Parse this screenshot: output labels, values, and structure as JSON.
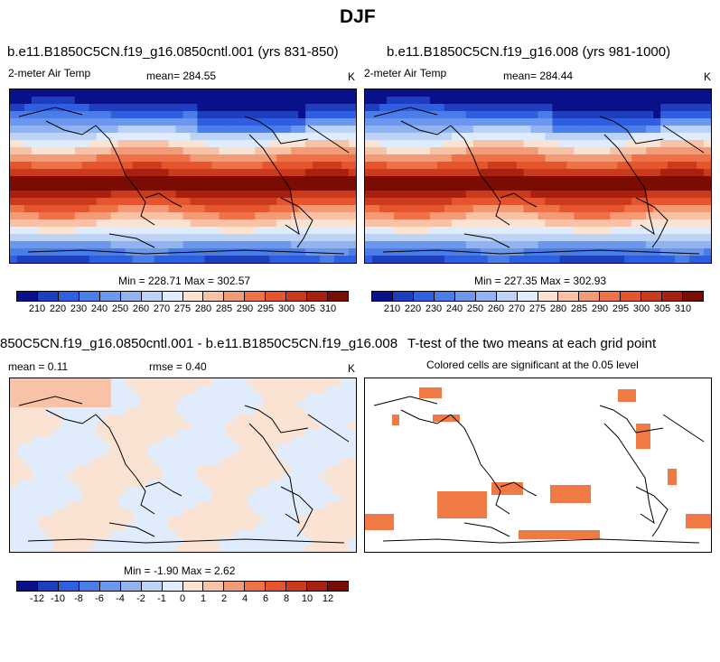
{
  "page": {
    "title": "DJF"
  },
  "panels": [
    {
      "title": "b.e11.B1850C5CN.f19_g16.0850cntl.001 (yrs 831-850)",
      "variable": "2-meter Air Temp",
      "stat": "mean= 284.55",
      "units": "K",
      "minmax": "Min = 228.71 Max = 302.57",
      "field": "temperature"
    },
    {
      "title": "b.e11.B1850C5CN.f19_g16.008 (yrs 981-1000)",
      "variable": "2-meter Air Temp",
      "stat": "mean= 284.44",
      "units": "K",
      "minmax": "Min = 227.35 Max = 302.93",
      "field": "temperature"
    },
    {
      "title": "850C5CN.f19_g16.0850cntl.001 - b.e11.B1850C5CN.f19_g16.008",
      "stat_mean": "mean =  0.11",
      "stat_rmse": "rmse =  0.40",
      "units": "K",
      "minmax": "Min = -1.90 Max =  2.62",
      "field": "difference"
    },
    {
      "title": "T-test of the two means at each grid point",
      "subtitle": "Colored cells are significant at the 0.05 level",
      "field": "significance"
    }
  ],
  "colorbars": {
    "temperature": {
      "labels": [
        "210",
        "220",
        "230",
        "240",
        "250",
        "260",
        "270",
        "275",
        "280",
        "285",
        "290",
        "295",
        "300",
        "305",
        "310"
      ],
      "colors": [
        "#08108a",
        "#1c3ebf",
        "#2e5fe0",
        "#4a7de8",
        "#6b97ec",
        "#91b3f0",
        "#bcd3f6",
        "#e0ecfb",
        "#fbe3d4",
        "#f8c2a7",
        "#f39a77",
        "#ee7148",
        "#e5542c",
        "#cc3a1c",
        "#a8200f",
        "#7a0c04"
      ]
    },
    "difference": {
      "labels": [
        "-12",
        "-10",
        "-8",
        "-6",
        "-4",
        "-2",
        "-1",
        "0",
        "1",
        "2",
        "4",
        "6",
        "8",
        "10",
        "12"
      ],
      "colors": [
        "#08108a",
        "#1c3ebf",
        "#2e5fe0",
        "#4a7de8",
        "#6b97ec",
        "#91b3f0",
        "#bcd3f6",
        "#e0ecfb",
        "#fbe3d4",
        "#f8c2a7",
        "#f39a77",
        "#ee7148",
        "#e5542c",
        "#cc3a1c",
        "#a8200f",
        "#7a0c04"
      ]
    }
  },
  "significance_color": "#f07a45"
}
